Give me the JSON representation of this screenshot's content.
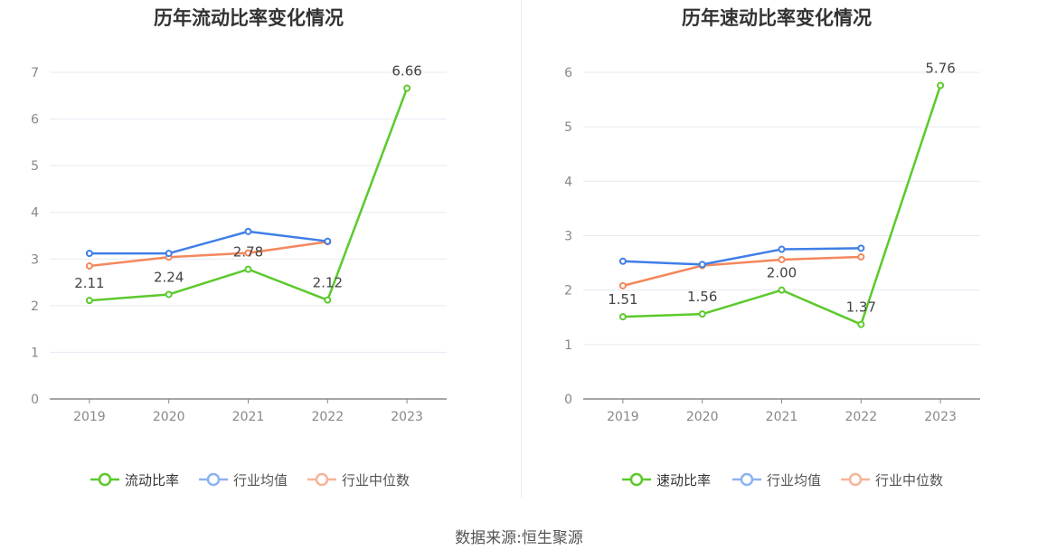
{
  "source_prefix": "数据来源:",
  "source_name": "恒生聚源",
  "chart_data": [
    {
      "type": "line",
      "title": "历年流动比率变化情况",
      "categories": [
        "2019",
        "2020",
        "2021",
        "2022",
        "2023"
      ],
      "ylim": [
        0,
        7
      ],
      "yticks": [
        0,
        1,
        2,
        3,
        4,
        5,
        6,
        7
      ],
      "grid": true,
      "legend_position": "bottom",
      "series": [
        {
          "name": "流动比率",
          "color": "#5cc92c",
          "values": [
            2.11,
            2.24,
            2.78,
            2.12,
            6.66
          ],
          "labels": [
            "2.11",
            "2.24",
            "2.78",
            "2.12",
            "6.66"
          ]
        },
        {
          "name": "行业均值",
          "color": "#3f7ee8",
          "values": [
            3.12,
            3.12,
            3.59,
            3.38,
            null
          ]
        },
        {
          "name": "行业中位数",
          "color": "#f4875d",
          "values": [
            2.85,
            3.04,
            3.13,
            3.37,
            null
          ]
        }
      ]
    },
    {
      "type": "line",
      "title": "历年速动比率变化情况",
      "categories": [
        "2019",
        "2020",
        "2021",
        "2022",
        "2023"
      ],
      "ylim": [
        0,
        6
      ],
      "yticks": [
        0,
        1,
        2,
        3,
        4,
        5,
        6
      ],
      "grid": true,
      "legend_position": "bottom",
      "series": [
        {
          "name": "速动比率",
          "color": "#5cc92c",
          "values": [
            1.51,
            1.56,
            2.0,
            1.37,
            5.76
          ],
          "labels": [
            "1.51",
            "1.56",
            "2.00",
            "1.37",
            "5.76"
          ]
        },
        {
          "name": "行业均值",
          "color": "#3f7ee8",
          "values": [
            2.53,
            2.47,
            2.75,
            2.77,
            null
          ]
        },
        {
          "name": "行业中位数",
          "color": "#f4875d",
          "values": [
            2.08,
            2.45,
            2.56,
            2.61,
            null
          ]
        }
      ]
    }
  ]
}
